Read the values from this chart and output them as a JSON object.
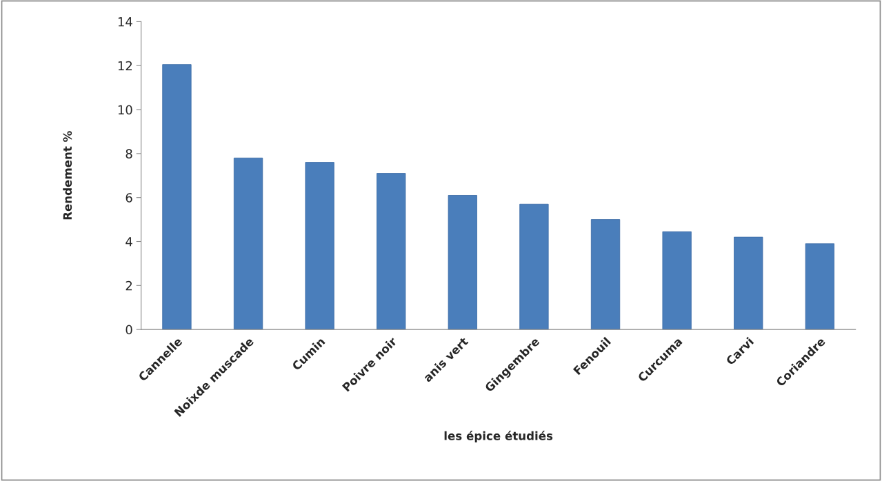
{
  "chart_data": {
    "type": "bar",
    "xlabel": "les épice étudiés",
    "ylabel": "Rendement %",
    "categories": [
      "Cannelle",
      "Noixde muscade",
      "Cumin",
      "Poivre noir",
      "anis vert",
      "Gingembre",
      "Fenouil",
      "Curcuma",
      "Carvi",
      "Coriandre"
    ],
    "values": [
      12.05,
      7.8,
      7.6,
      7.1,
      6.1,
      5.7,
      5.0,
      4.45,
      4.2,
      3.9
    ],
    "color": "#4a7ebb",
    "ylim": [
      0,
      14
    ],
    "yticks": [
      0,
      2,
      4,
      6,
      8,
      10,
      12,
      14
    ],
    "grid": false
  }
}
